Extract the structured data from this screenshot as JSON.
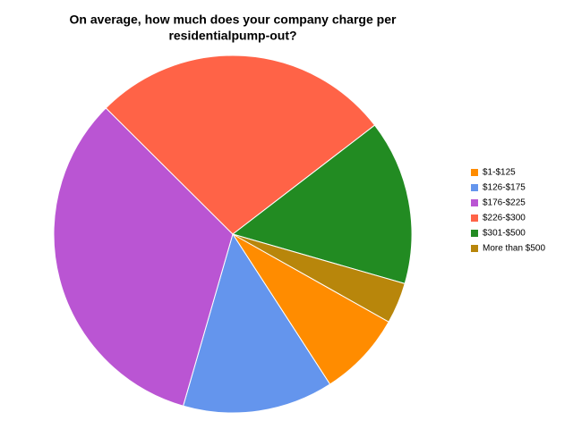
{
  "chart_data": {
    "type": "pie",
    "title": [
      "On average, how much does your company charge per",
      "residentialpump-out?"
    ],
    "categories": [
      "$1-$125",
      "$126-$175",
      "$176-$225",
      "$226-$300",
      "$301-$500",
      "More than $500"
    ],
    "values": [
      7.7,
      13.6,
      33,
      27.1,
      14.9,
      3.7
    ],
    "colors": [
      "#ff8c00",
      "#6495ed",
      "#ba55d3",
      "#ff6347",
      "#228b22",
      "#b8860b"
    ],
    "legend": "right"
  }
}
